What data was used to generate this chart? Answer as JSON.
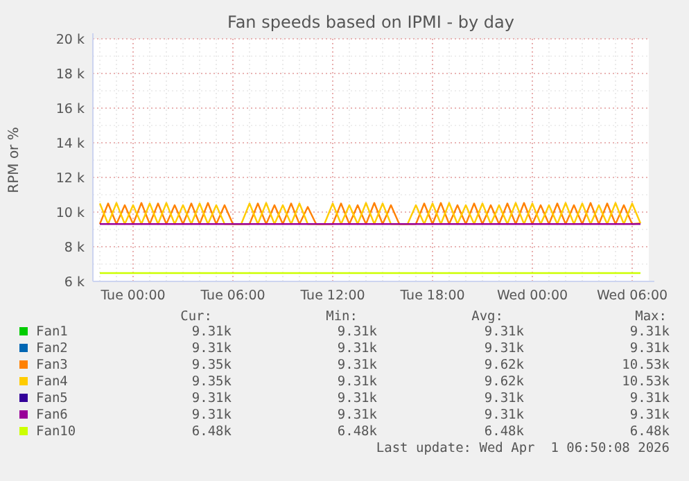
{
  "chart_data": {
    "type": "line",
    "title": "Fan speeds based on IPMI - by day",
    "ylabel": "RPM or %",
    "x": [
      "2026-03-30T22:00",
      "2026-03-30T22:30",
      "2026-03-30T23:00",
      "2026-03-30T23:30",
      "2026-03-31T00:00",
      "2026-03-31T00:30",
      "2026-03-31T01:00",
      "2026-03-31T01:30",
      "2026-03-31T02:00",
      "2026-03-31T02:30",
      "2026-03-31T03:00",
      "2026-03-31T03:30",
      "2026-03-31T04:00",
      "2026-03-31T04:30",
      "2026-03-31T05:00",
      "2026-03-31T05:30",
      "2026-03-31T06:00",
      "2026-03-31T06:30",
      "2026-03-31T07:00",
      "2026-03-31T07:30",
      "2026-03-31T08:00",
      "2026-03-31T08:30",
      "2026-03-31T09:00",
      "2026-03-31T09:30",
      "2026-03-31T10:00",
      "2026-03-31T10:30",
      "2026-03-31T11:00",
      "2026-03-31T11:30",
      "2026-03-31T12:00",
      "2026-03-31T12:30",
      "2026-03-31T13:00",
      "2026-03-31T13:30",
      "2026-03-31T14:00",
      "2026-03-31T14:30",
      "2026-03-31T15:00",
      "2026-03-31T15:30",
      "2026-03-31T16:00",
      "2026-03-31T16:30",
      "2026-03-31T17:00",
      "2026-03-31T17:30",
      "2026-03-31T18:00",
      "2026-03-31T18:30",
      "2026-03-31T19:00",
      "2026-03-31T19:30",
      "2026-03-31T20:00",
      "2026-03-31T20:30",
      "2026-03-31T21:00",
      "2026-03-31T21:30",
      "2026-03-31T22:00",
      "2026-03-31T22:30",
      "2026-03-31T23:00",
      "2026-03-31T23:30",
      "2026-04-01T00:00",
      "2026-04-01T00:30",
      "2026-04-01T01:00",
      "2026-04-01T01:30",
      "2026-04-01T02:00",
      "2026-04-01T02:30",
      "2026-04-01T03:00",
      "2026-04-01T03:30",
      "2026-04-01T04:00",
      "2026-04-01T04:30",
      "2026-04-01T05:00",
      "2026-04-01T05:30",
      "2026-04-01T06:00",
      "2026-04-01T06:30"
    ],
    "xlim": [
      "2026-03-30T21:35",
      "2026-04-01T07:00"
    ],
    "xticks": [
      {
        "value": "2026-03-31T00:00",
        "label": "Tue 00:00"
      },
      {
        "value": "2026-03-31T06:00",
        "label": "Tue 06:00"
      },
      {
        "value": "2026-03-31T12:00",
        "label": "Tue 12:00"
      },
      {
        "value": "2026-03-31T18:00",
        "label": "Tue 18:00"
      },
      {
        "value": "2026-04-01T00:00",
        "label": "Wed 00:00"
      },
      {
        "value": "2026-04-01T06:00",
        "label": "Wed 06:00"
      }
    ],
    "ylim": [
      6000,
      20000
    ],
    "yticks": [
      {
        "value": 6000,
        "label": "6 k"
      },
      {
        "value": 8000,
        "label": "8 k"
      },
      {
        "value": 10000,
        "label": "10 k"
      },
      {
        "value": 12000,
        "label": "12 k"
      },
      {
        "value": 14000,
        "label": "14 k"
      },
      {
        "value": 16000,
        "label": "16 k"
      },
      {
        "value": 18000,
        "label": "18 k"
      },
      {
        "value": 20000,
        "label": "20 k"
      }
    ],
    "grid": true,
    "legend": "bottom",
    "marker": "none",
    "line_style": "solid",
    "series": [
      {
        "name": "Fan1",
        "color": "#00cc00",
        "values": [
          null,
          null,
          null,
          null,
          null,
          null,
          null,
          null,
          null,
          null,
          null,
          null,
          null,
          null,
          null,
          null,
          null,
          null,
          null,
          null,
          null,
          null,
          null,
          null,
          null,
          null,
          null,
          null,
          null,
          null,
          null,
          null,
          null,
          null,
          null,
          null,
          null,
          null,
          null,
          null,
          null,
          null,
          null,
          null,
          null,
          null,
          null,
          null,
          null,
          null,
          null,
          null,
          null,
          null,
          null,
          null,
          null,
          null,
          null,
          null,
          null,
          null,
          null,
          null,
          null,
          null
        ]
      },
      {
        "name": "Fan2",
        "color": "#0066b3",
        "values": [
          null,
          null,
          null,
          null,
          null,
          null,
          null,
          null,
          null,
          null,
          null,
          null,
          null,
          null,
          null,
          null,
          null,
          null,
          null,
          null,
          null,
          null,
          null,
          null,
          null,
          null,
          null,
          null,
          null,
          null,
          null,
          null,
          null,
          null,
          null,
          null,
          null,
          null,
          null,
          null,
          null,
          null,
          null,
          null,
          null,
          null,
          null,
          null,
          null,
          null,
          null,
          null,
          null,
          null,
          null,
          null,
          null,
          null,
          null,
          null,
          null,
          null,
          null,
          null,
          null,
          null
        ]
      },
      {
        "name": "Fan3",
        "color": "#ff8000",
        "values": [
          9310,
          10500,
          9310,
          10400,
          9310,
          10530,
          9310,
          10500,
          9310,
          10400,
          9310,
          10500,
          9310,
          10530,
          9310,
          10400,
          9310,
          9310,
          9310,
          10500,
          9310,
          10400,
          9310,
          10500,
          9310,
          10300,
          9310,
          9310,
          9310,
          10500,
          9310,
          10400,
          9310,
          10530,
          9310,
          10400,
          9310,
          9310,
          9310,
          10500,
          9310,
          10530,
          9310,
          10400,
          9310,
          10500,
          9310,
          10400,
          9310,
          10500,
          9310,
          10530,
          9310,
          10400,
          9310,
          10500,
          9310,
          10400,
          9310,
          10530,
          9310,
          10500,
          9310,
          10400,
          9310,
          9350
        ]
      },
      {
        "name": "Fan4",
        "color": "#ffcc00",
        "values": [
          10500,
          9310,
          10530,
          9310,
          10400,
          9310,
          10500,
          9310,
          10530,
          9310,
          10400,
          9310,
          10500,
          9310,
          10400,
          9310,
          9310,
          9310,
          10500,
          9310,
          10530,
          9310,
          10400,
          9310,
          10500,
          9310,
          9310,
          9310,
          10500,
          9310,
          10400,
          9310,
          10530,
          9310,
          10500,
          9310,
          9310,
          9310,
          10400,
          9310,
          10500,
          9310,
          10530,
          9310,
          10400,
          9310,
          10500,
          9310,
          10400,
          9310,
          10530,
          9310,
          10500,
          9310,
          10400,
          9310,
          10530,
          9310,
          10500,
          9310,
          10400,
          9310,
          10530,
          9310,
          10500,
          9350
        ]
      },
      {
        "name": "Fan5",
        "color": "#330099",
        "values": [
          null,
          null,
          null,
          null,
          null,
          null,
          null,
          null,
          null,
          null,
          null,
          null,
          null,
          null,
          null,
          null,
          null,
          null,
          null,
          null,
          null,
          null,
          null,
          null,
          null,
          null,
          null,
          null,
          null,
          null,
          null,
          null,
          null,
          null,
          null,
          null,
          null,
          null,
          null,
          null,
          null,
          null,
          null,
          null,
          null,
          null,
          null,
          null,
          null,
          null,
          null,
          null,
          null,
          null,
          null,
          null,
          null,
          null,
          null,
          null,
          null,
          null,
          null,
          null,
          null,
          null
        ]
      },
      {
        "name": "Fan6",
        "color": "#990099",
        "values": [
          9310,
          9310,
          9310,
          9310,
          9310,
          9310,
          9310,
          9310,
          9310,
          9310,
          9310,
          9310,
          9310,
          9310,
          9310,
          9310,
          9310,
          9310,
          9310,
          9310,
          9310,
          9310,
          9310,
          9310,
          9310,
          9310,
          9310,
          9310,
          9310,
          9310,
          9310,
          9310,
          9310,
          9310,
          9310,
          9310,
          9310,
          9310,
          9310,
          9310,
          9310,
          9310,
          9310,
          9310,
          9310,
          9310,
          9310,
          9310,
          9310,
          9310,
          9310,
          9310,
          9310,
          9310,
          9310,
          9310,
          9310,
          9310,
          9310,
          9310,
          9310,
          9310,
          9310,
          9310,
          9310,
          9310
        ]
      },
      {
        "name": "Fan10",
        "color": "#ccff00",
        "values": [
          6480,
          6480,
          6480,
          6480,
          6480,
          6480,
          6480,
          6480,
          6480,
          6480,
          6480,
          6480,
          6480,
          6480,
          6480,
          6480,
          6480,
          6480,
          6480,
          6480,
          6480,
          6480,
          6480,
          6480,
          6480,
          6480,
          6480,
          6480,
          6480,
          6480,
          6480,
          6480,
          6480,
          6480,
          6480,
          6480,
          6480,
          6480,
          6480,
          6480,
          6480,
          6480,
          6480,
          6480,
          6480,
          6480,
          6480,
          6480,
          6480,
          6480,
          6480,
          6480,
          6480,
          6480,
          6480,
          6480,
          6480,
          6480,
          6480,
          6480,
          6480,
          6480,
          6480,
          6480,
          6480,
          6480
        ]
      }
    ],
    "annotations": [
      "Cur:",
      "Min:",
      "Avg:",
      "Max:",
      "9.31k",
      "9.31k",
      "9.31k",
      "9.31k",
      "9.31k",
      "9.31k",
      "9.31k",
      "9.31k",
      "9.35k",
      "9.31k",
      "9.62k",
      "10.53k",
      "9.35k",
      "9.31k",
      "9.62k",
      "10.53k",
      "9.31k",
      "9.31k",
      "9.31k",
      "9.31k",
      "9.31k",
      "9.31k",
      "9.31k",
      "9.31k",
      "6.48k",
      "6.48k",
      "6.48k",
      "6.48k",
      "Last update: Wed Apr  1 06:50:08 2026"
    ]
  }
}
